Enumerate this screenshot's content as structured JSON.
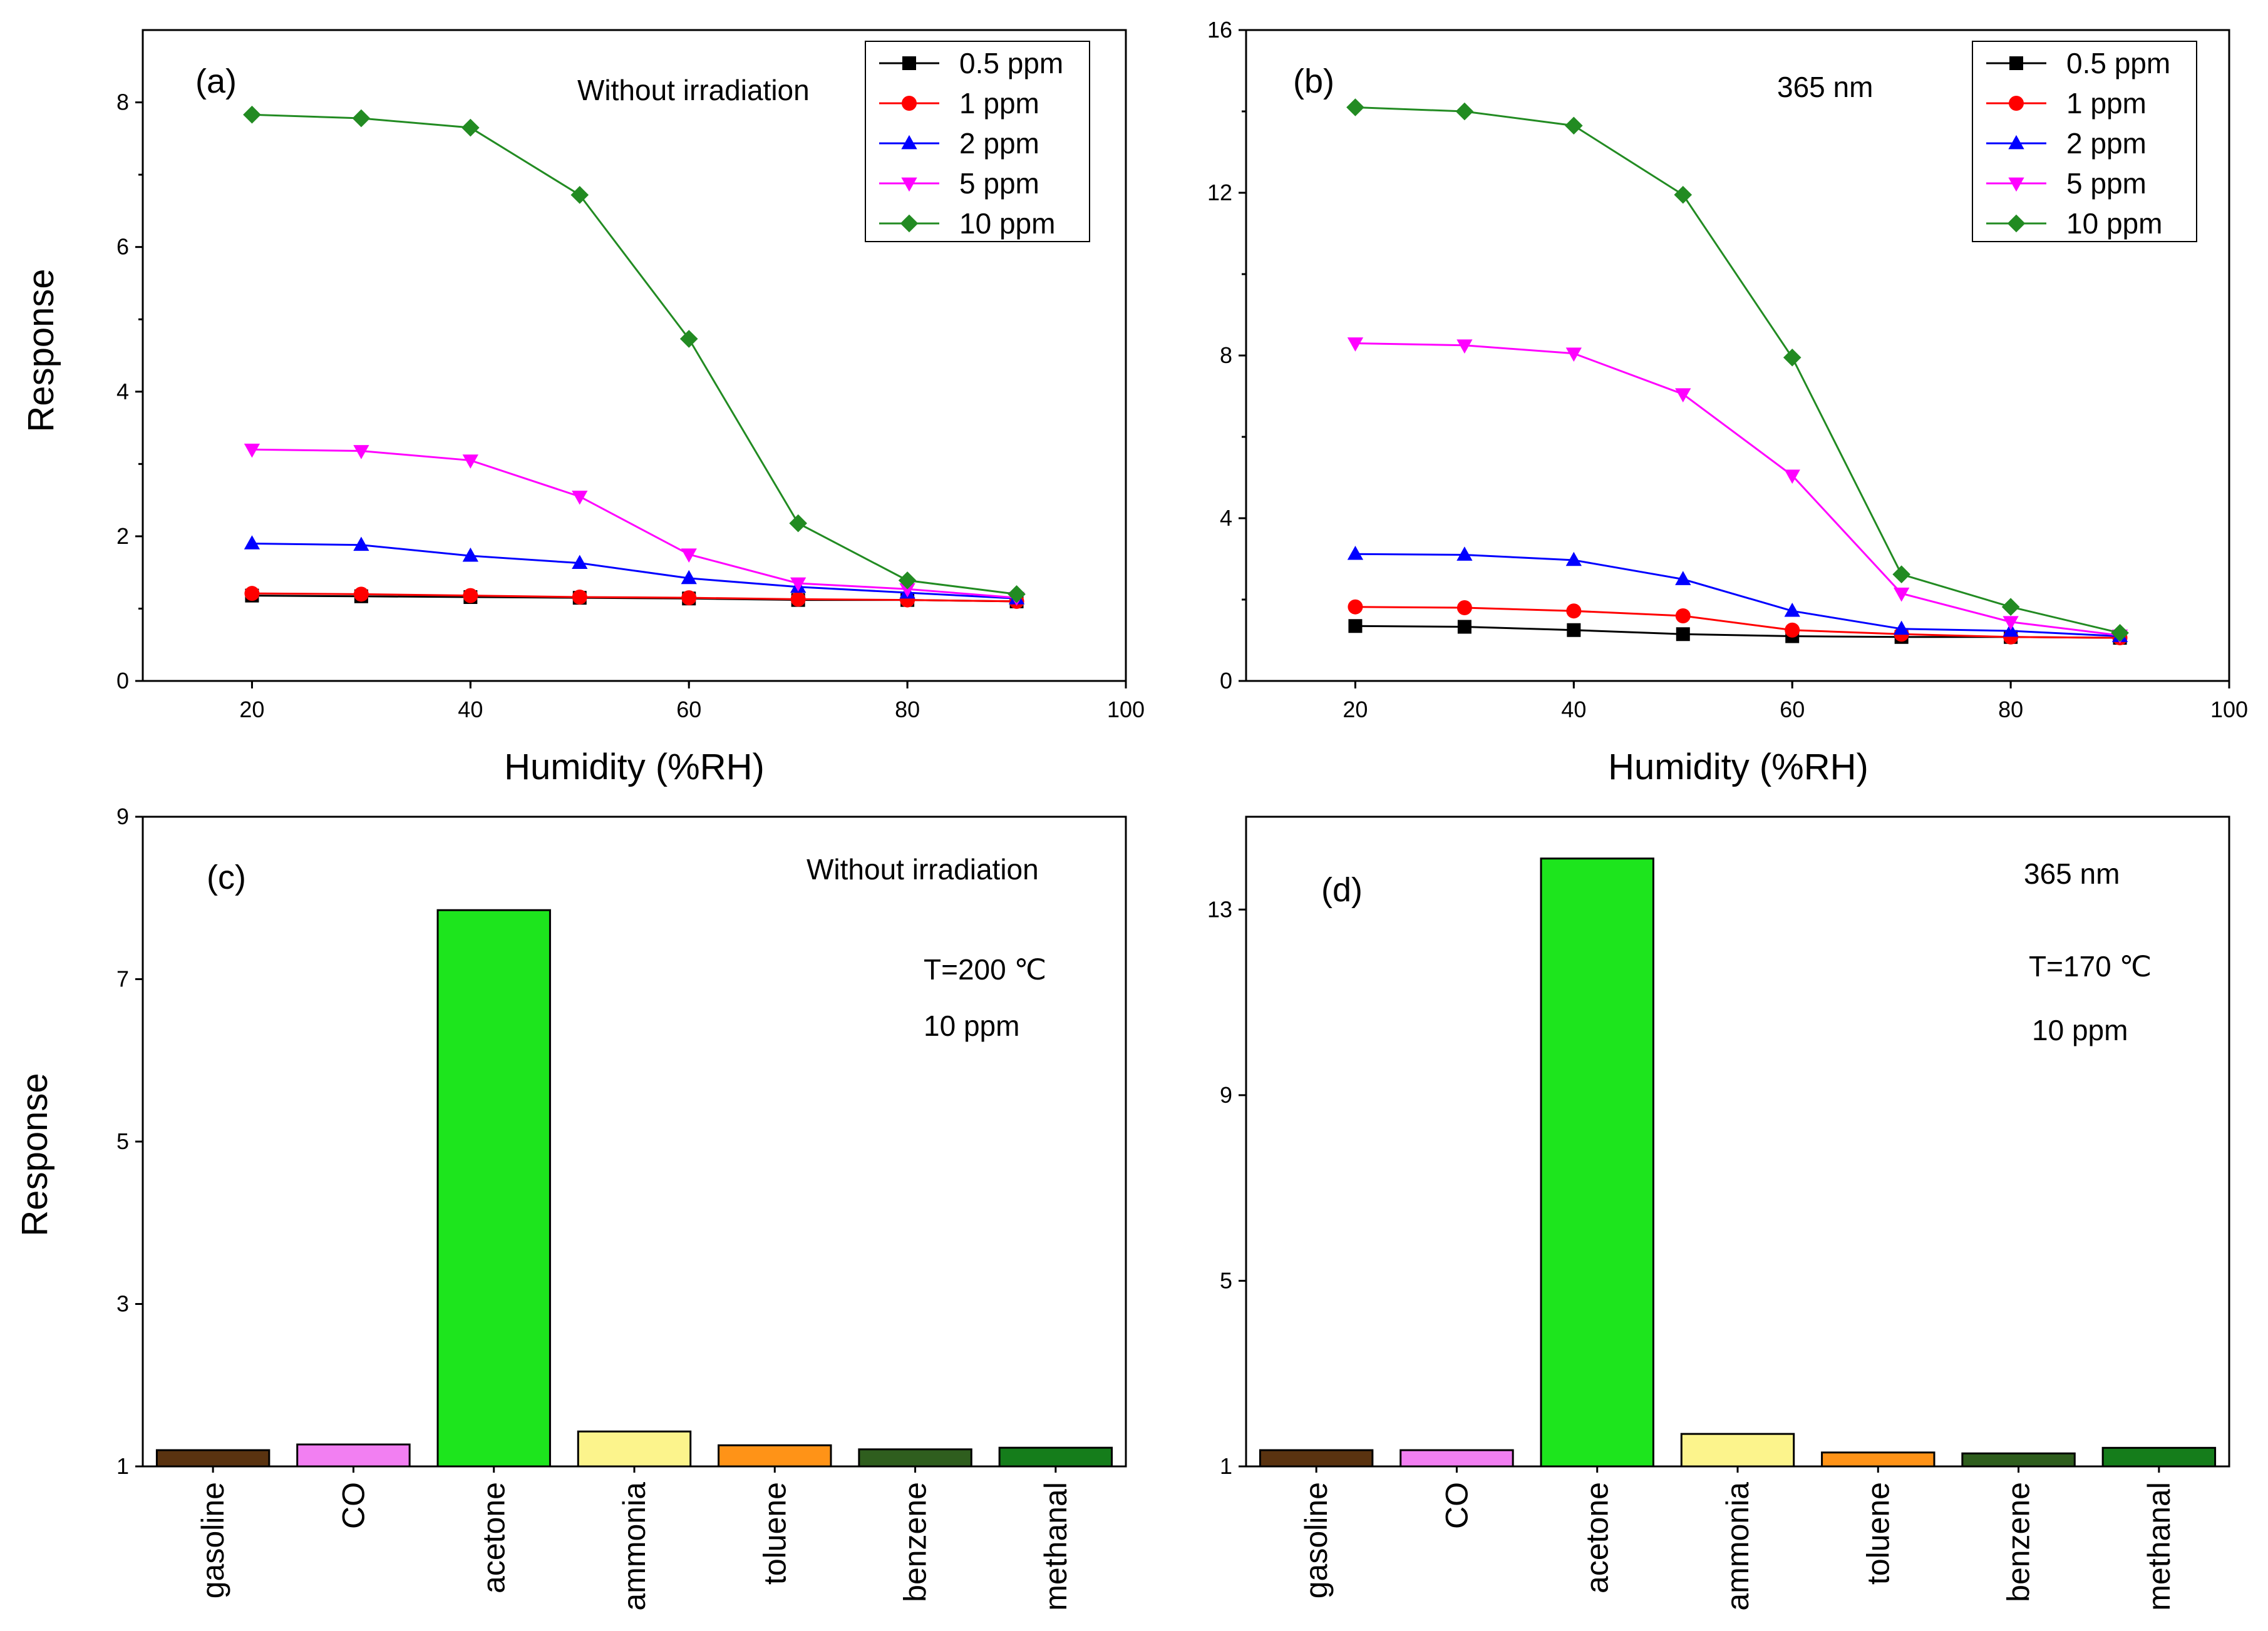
{
  "chart_data": [
    {
      "id": "a",
      "type": "line",
      "panel_label": "(a)",
      "annotation": "Without irradiation",
      "xlabel": "Humidity (%RH)",
      "ylabel": "Response",
      "xlim": [
        10,
        100
      ],
      "ylim": [
        0,
        9
      ],
      "xticks": [
        20,
        40,
        60,
        80,
        100
      ],
      "yticks": [
        0,
        2,
        4,
        6,
        8
      ],
      "x": [
        20,
        30,
        40,
        50,
        60,
        70,
        80,
        90
      ],
      "legend_position": "top-right",
      "series": [
        {
          "name": "0.5 ppm",
          "color": "#000000",
          "marker": "square",
          "values": [
            1.18,
            1.17,
            1.16,
            1.15,
            1.14,
            1.12,
            1.12,
            1.1
          ]
        },
        {
          "name": "1 ppm",
          "color": "#ff0000",
          "marker": "circle",
          "values": [
            1.21,
            1.2,
            1.18,
            1.16,
            1.15,
            1.13,
            1.12,
            1.1
          ]
        },
        {
          "name": "2 ppm",
          "color": "#0000ff",
          "marker": "triangle-up",
          "values": [
            1.9,
            1.88,
            1.73,
            1.63,
            1.42,
            1.3,
            1.22,
            1.14
          ]
        },
        {
          "name": "5 ppm",
          "color": "#ff00ff",
          "marker": "triangle-down",
          "values": [
            3.2,
            3.18,
            3.05,
            2.55,
            1.75,
            1.35,
            1.27,
            1.15
          ]
        },
        {
          "name": "10 ppm",
          "color": "#228b22",
          "marker": "diamond",
          "values": [
            7.83,
            7.78,
            7.65,
            6.72,
            4.73,
            2.18,
            1.39,
            1.2
          ]
        }
      ]
    },
    {
      "id": "b",
      "type": "line",
      "panel_label": "(b)",
      "annotation": "365 nm",
      "xlabel": "Humidity (%RH)",
      "ylabel": "",
      "xlim": [
        10,
        100
      ],
      "ylim": [
        0,
        16
      ],
      "xticks": [
        20,
        40,
        60,
        80,
        100
      ],
      "yticks": [
        0,
        4,
        8,
        12,
        16
      ],
      "x": [
        20,
        30,
        40,
        50,
        60,
        70,
        80,
        90
      ],
      "legend_position": "top-right",
      "series": [
        {
          "name": "0.5 ppm",
          "color": "#000000",
          "marker": "square",
          "values": [
            1.35,
            1.33,
            1.25,
            1.15,
            1.1,
            1.08,
            1.08,
            1.06
          ]
        },
        {
          "name": "1 ppm",
          "color": "#ff0000",
          "marker": "circle",
          "values": [
            1.82,
            1.8,
            1.72,
            1.6,
            1.25,
            1.15,
            1.08,
            1.06
          ]
        },
        {
          "name": "2 ppm",
          "color": "#0000ff",
          "marker": "triangle-up",
          "values": [
            3.12,
            3.1,
            2.97,
            2.5,
            1.72,
            1.28,
            1.23,
            1.1
          ]
        },
        {
          "name": "5 ppm",
          "color": "#ff00ff",
          "marker": "triangle-down",
          "values": [
            8.3,
            8.25,
            8.05,
            7.05,
            5.05,
            2.15,
            1.45,
            1.12
          ]
        },
        {
          "name": "10 ppm",
          "color": "#228b22",
          "marker": "diamond",
          "values": [
            14.1,
            14.0,
            13.65,
            11.95,
            7.95,
            2.62,
            1.82,
            1.18
          ]
        }
      ]
    },
    {
      "id": "c",
      "type": "bar",
      "panel_label": "(c)",
      "annotations": [
        "Without irradiation",
        "T=200 ℃",
        "10 ppm"
      ],
      "xlabel": "",
      "ylabel": "Response",
      "ylim": [
        1,
        9
      ],
      "yticks": [
        1,
        3,
        5,
        7,
        9
      ],
      "categories": [
        "gasoline",
        "CO",
        "acetone",
        "ammonia",
        "toluene",
        "benzene",
        "methanal"
      ],
      "values": [
        1.2,
        1.27,
        7.85,
        1.43,
        1.26,
        1.21,
        1.23
      ],
      "colors": [
        "#5a3310",
        "#f27ff2",
        "#1de51d",
        "#fcf48c",
        "#ff9317",
        "#2f5e1e",
        "#157d1b"
      ]
    },
    {
      "id": "d",
      "type": "bar",
      "panel_label": "(d)",
      "annotations": [
        "365 nm",
        "T=170 ℃",
        "10 ppm"
      ],
      "xlabel": "",
      "ylabel": "",
      "ylim": [
        1,
        15
      ],
      "yticks": [
        1,
        5,
        9,
        13
      ],
      "categories": [
        "gasoline",
        "CO",
        "acetone",
        "ammonia",
        "toluene",
        "benzene",
        "methanal"
      ],
      "values": [
        1.35,
        1.35,
        14.1,
        1.7,
        1.3,
        1.28,
        1.4
      ],
      "colors": [
        "#5a3310",
        "#f27ff2",
        "#1de51d",
        "#fcf48c",
        "#ff9317",
        "#2f5e1e",
        "#157d1b"
      ]
    }
  ]
}
